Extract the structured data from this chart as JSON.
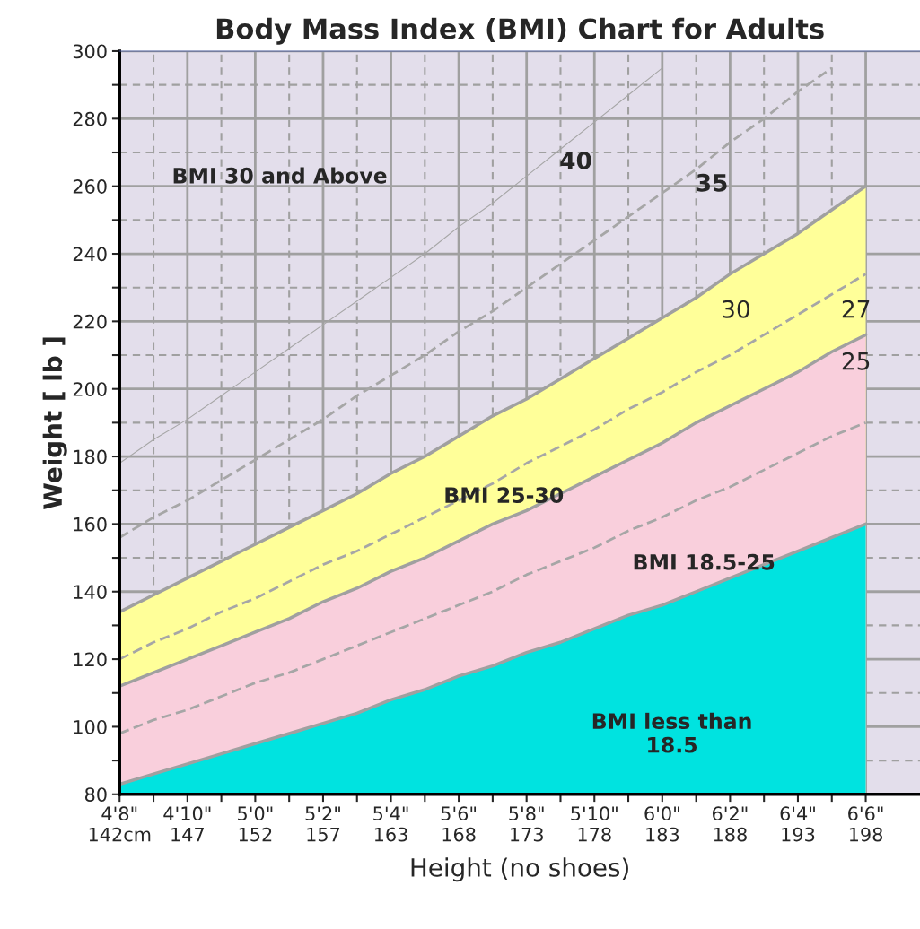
{
  "chart_data": {
    "type": "area",
    "title": "Body Mass Index (BMI) Chart for Adults",
    "xlabel": "Height (no shoes)",
    "ylabel": "Weight [ lb ]",
    "categories": [
      "4'8\"\n142cm",
      null,
      "4'10\"\n147",
      null,
      "5'0\"\n152",
      null,
      "5'2\"\n157",
      null,
      "5'4\"\n163",
      null,
      "5'6\"\n168",
      null,
      "5'8\"\n173",
      null,
      "5'10\"\n178",
      null,
      "6'0\"\n183",
      null,
      "6'2\"\n188",
      null,
      "6'4\"\n193",
      null,
      "6'6\"\n198"
    ],
    "series": [
      {
        "color": "#ffff99",
        "values": [
          134,
          139,
          144,
          149,
          154,
          159,
          164,
          169,
          175,
          180,
          186,
          192,
          197,
          203,
          209,
          215,
          221,
          227,
          234,
          240,
          246,
          253,
          260
        ]
      },
      {
        "color": "#f9cfdc",
        "values": [
          112,
          116,
          120,
          124,
          128,
          132,
          137,
          141,
          146,
          150,
          155,
          160,
          164,
          169,
          174,
          179,
          184,
          190,
          195,
          200,
          205,
          211,
          216
        ]
      },
      {
        "color": "#00e3e0",
        "values": [
          83,
          86,
          89,
          92,
          95,
          98,
          101,
          104,
          108,
          111,
          115,
          118,
          122,
          125,
          129,
          133,
          136,
          140,
          144,
          148,
          152,
          156,
          160
        ]
      },
      {
        "type": "line",
        "color": "#a6a6a6",
        "line_style": "dashed",
        "values": [
          98,
          102,
          105,
          109,
          113,
          116,
          120,
          124,
          128,
          132,
          136,
          140,
          145,
          149,
          153,
          158,
          162,
          167,
          171,
          176,
          181,
          186,
          190
        ]
      },
      {
        "type": "line",
        "color": "#a6a6a6",
        "line_style": "dashed",
        "values": [
          120,
          125,
          129,
          134,
          138,
          143,
          148,
          152,
          157,
          162,
          167,
          172,
          178,
          183,
          188,
          194,
          199,
          205,
          210,
          216,
          222,
          228,
          234
        ]
      },
      {
        "type": "line",
        "color": "#a6a6a6",
        "line_style": "dashed",
        "values": [
          156,
          162,
          167,
          173,
          179,
          185,
          191,
          198,
          204,
          210,
          217,
          223,
          230,
          237,
          244,
          251,
          258,
          265,
          273,
          280,
          288,
          295,
          null
        ]
      },
      {
        "type": "line",
        "color": "#a6a6a6",
        "line_style": "solid",
        "values": [
          178,
          185,
          191,
          198,
          205,
          212,
          219,
          226,
          233,
          240,
          248,
          255,
          263,
          271,
          279,
          287,
          295,
          null,
          null,
          null,
          null,
          null,
          null
        ]
      }
    ],
    "ylim": [
      80,
      300
    ],
    "yticks": [
      80,
      {
        "value": 90,
        "label": null
      },
      100,
      {
        "value": 110,
        "label": null
      },
      120,
      {
        "value": 130,
        "label": null
      },
      140,
      {
        "value": 150,
        "label": null
      },
      160,
      {
        "value": 170,
        "label": null
      },
      180,
      {
        "value": 190,
        "label": null
      },
      200,
      {
        "value": 210,
        "label": null
      },
      220,
      {
        "value": 230,
        "label": null
      },
      240,
      {
        "value": 250,
        "label": null
      },
      260,
      {
        "value": 270,
        "label": null
      },
      280,
      {
        "value": 290,
        "label": null
      },
      300
    ],
    "grid": true,
    "annotations": [
      "BMI 30 and Above",
      "BMI 25-30",
      "BMI 18.5-25",
      "BMI less than\n18.5",
      "40",
      "35",
      "30",
      "27",
      "25"
    ]
  }
}
